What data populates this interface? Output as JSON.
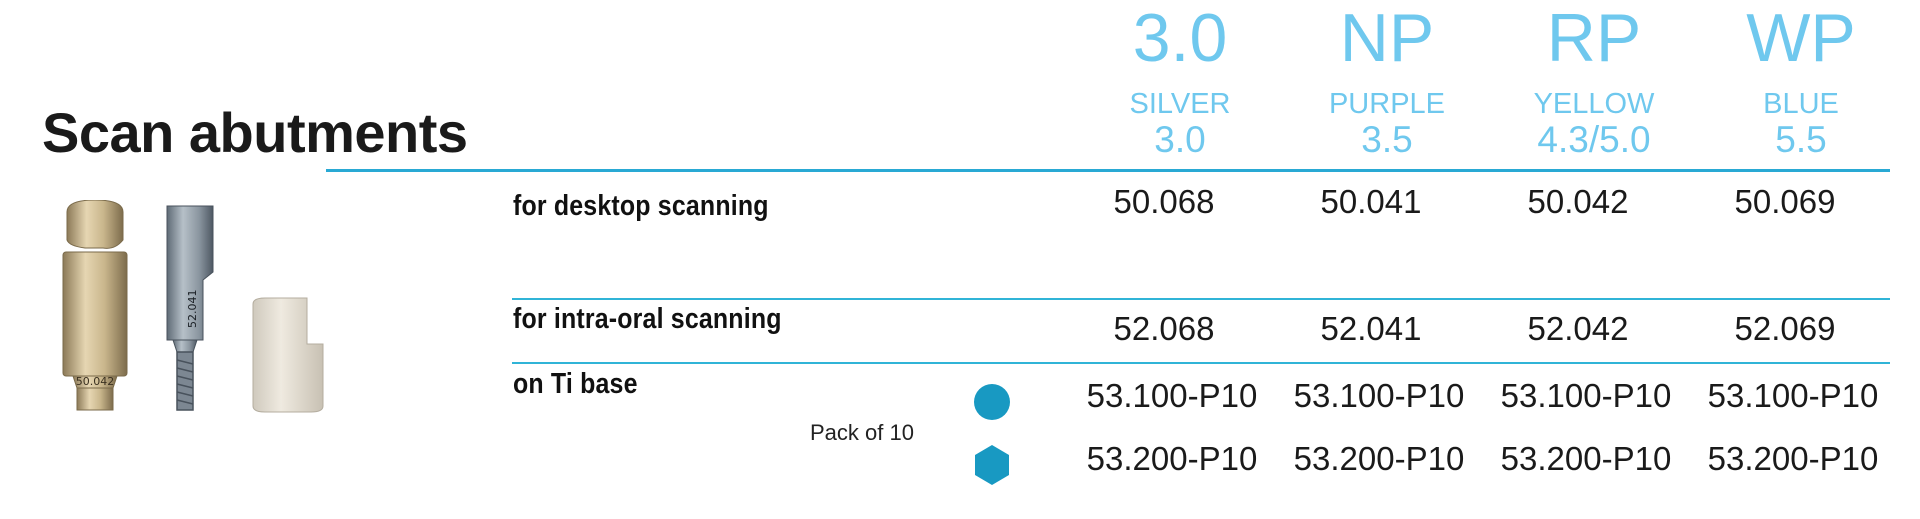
{
  "title": "Scan abutments",
  "columns": [
    {
      "code": "3.0",
      "color": "SILVER",
      "diameter": "3.0"
    },
    {
      "code": "NP",
      "color": "PURPLE",
      "diameter": "3.5"
    },
    {
      "code": "RP",
      "color": "YELLOW",
      "diameter": "4.3/5.0"
    },
    {
      "code": "WP",
      "color": "BLUE",
      "diameter": "5.5"
    }
  ],
  "rows": [
    {
      "label": "for desktop scanning",
      "values": [
        "50.068",
        "50.041",
        "50.042",
        "50.069"
      ]
    },
    {
      "label": "for intra-oral scanning",
      "values": [
        "52.068",
        "52.041",
        "52.042",
        "52.069"
      ]
    },
    {
      "label": "on Ti base",
      "values": [
        "53.100-P10",
        "53.100-P10",
        "53.100-P10",
        "53.100-P10"
      ]
    },
    {
      "label": "",
      "values": [
        "53.200-P10",
        "53.200-P10",
        "53.200-P10",
        "53.200-P10"
      ]
    }
  ],
  "pack_label": "Pack of 10",
  "symbols": {
    "round": "circle-icon",
    "hex": "hexagon-icon",
    "color": "#1899c2"
  },
  "image_labels": {
    "gold": "50.042",
    "grey": "52.041"
  },
  "accent_color": "#6fc8ee",
  "rule_color": "#30b4d7"
}
